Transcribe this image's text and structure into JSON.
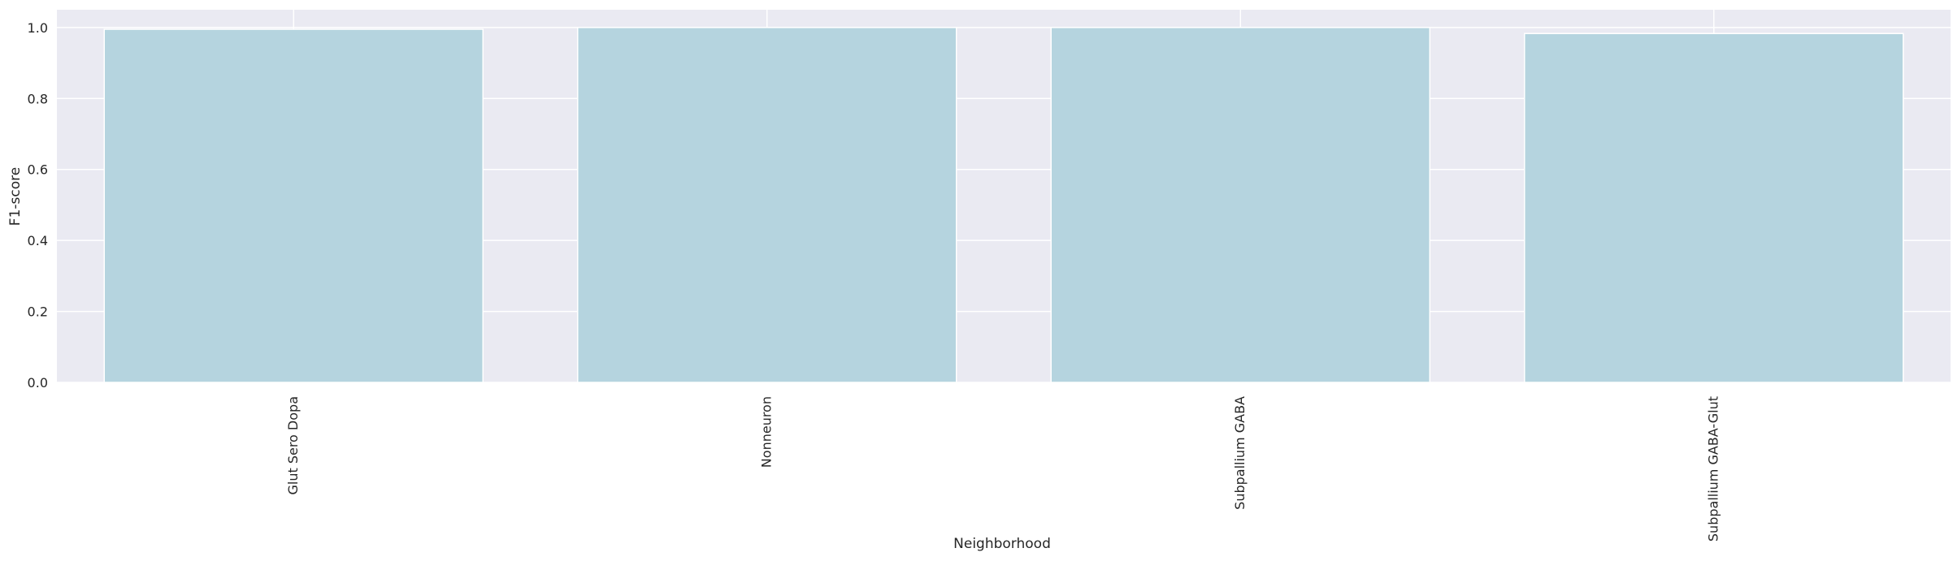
{
  "chart_data": {
    "type": "bar",
    "categories": [
      "Glut Sero Dopa",
      "Nonneuron",
      "Subpallium GABA",
      "Subpallium GABA-Glut"
    ],
    "values": [
      0.995,
      1.0,
      1.0,
      0.983
    ],
    "title": "",
    "xlabel": "Neighborhood",
    "ylabel": "F1-score",
    "ylim": [
      0,
      1.05
    ],
    "yticks": [
      "0.0",
      "0.2",
      "0.4",
      "0.6",
      "0.8",
      "1.0"
    ],
    "grid": true,
    "colors": {
      "bar": "#b5d4df",
      "plot_background": "#eaeaf2",
      "grid": "#ffffff",
      "text": "#262626"
    }
  }
}
